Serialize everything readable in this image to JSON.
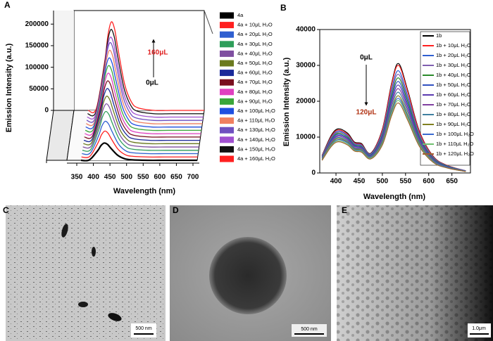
{
  "chart_data": [
    {
      "type": "waterfall",
      "panel": "A",
      "y_label": "Emission Intensity (a.u.)",
      "x_label": "Wavelength (nm)",
      "annotations": [
        "160μL",
        "0μL"
      ],
      "xlim": [
        350,
        700
      ],
      "xticks": [
        350,
        400,
        450,
        500,
        550,
        600,
        650,
        700
      ],
      "ylim": [
        0,
        220000
      ],
      "yticks": [
        0,
        50000,
        100000,
        150000,
        200000
      ],
      "x": [
        350,
        375,
        400,
        410,
        420,
        430,
        440,
        460,
        480,
        500,
        550,
        600,
        650,
        700
      ],
      "series": [
        {
          "name": "4a",
          "color": "#000000",
          "values": [
            0,
            800,
            22000,
            34000,
            40000,
            36800,
            28000,
            12000,
            4000,
            1200,
            0,
            0,
            0,
            0
          ]
        },
        {
          "name": "4a + 10μL H₂O",
          "color": "#ff2020",
          "values": [
            0,
            1200,
            33000,
            51000,
            60000,
            55200,
            42000,
            18000,
            6000,
            1800,
            0,
            0,
            0,
            0
          ]
        },
        {
          "name": "4a + 20μL H₂O",
          "color": "#2f5fd0",
          "values": [
            0,
            1500,
            41250,
            63750,
            75000,
            69000,
            52500,
            22500,
            7500,
            2250,
            0,
            0,
            0,
            0
          ]
        },
        {
          "name": "4a + 30μL H₂O",
          "color": "#2e9e5a",
          "values": [
            0,
            1800,
            49500,
            76500,
            90000,
            82800,
            63000,
            27000,
            9000,
            2700,
            0,
            0,
            0,
            0
          ]
        },
        {
          "name": "4a + 40μL H₂O",
          "color": "#7f4fa0",
          "values": [
            0,
            2000,
            55000,
            85000,
            100000,
            92000,
            70000,
            30000,
            10000,
            3000,
            0,
            0,
            0,
            0
          ]
        },
        {
          "name": "4a + 50μL H₂O",
          "color": "#6b7a1f",
          "values": [
            0,
            2200,
            60500,
            93500,
            110000,
            101200,
            77000,
            33000,
            11000,
            3300,
            0,
            0,
            0,
            0
          ]
        },
        {
          "name": "4a + 60μL H₂O",
          "color": "#1a2a9a",
          "values": [
            0,
            2400,
            66000,
            102000,
            120000,
            110400,
            84000,
            36000,
            12000,
            3600,
            0,
            0,
            0,
            0
          ]
        },
        {
          "name": "4a + 70μL H₂O",
          "color": "#7a0f1f",
          "values": [
            0,
            2600,
            71500,
            110500,
            130000,
            119600,
            91000,
            39000,
            13000,
            3900,
            0,
            0,
            0,
            0
          ]
        },
        {
          "name": "4a + 80μL H₂O",
          "color": "#e040c0",
          "values": [
            0,
            2800,
            77000,
            119000,
            140000,
            128800,
            98000,
            42000,
            14000,
            4200,
            0,
            0,
            0,
            0
          ]
        },
        {
          "name": "4a + 90μL H₂O",
          "color": "#3aa63a",
          "values": [
            0,
            3000,
            82500,
            127500,
            150000,
            138000,
            105000,
            45000,
            15000,
            4500,
            0,
            0,
            0,
            0
          ]
        },
        {
          "name": "4a + 100μL H₂O",
          "color": "#1f4fe0",
          "values": [
            0,
            3200,
            88000,
            136000,
            160000,
            147200,
            112000,
            48000,
            16000,
            4800,
            0,
            0,
            0,
            0
          ]
        },
        {
          "name": "4a + 110μL H₂O",
          "color": "#f08060",
          "values": [
            0,
            3400,
            93500,
            144500,
            170000,
            156400,
            119000,
            51000,
            17000,
            5100,
            0,
            0,
            0,
            0
          ]
        },
        {
          "name": "4a + 130μL H₂O",
          "color": "#7050c0",
          "values": [
            0,
            3600,
            99000,
            153000,
            180000,
            165600,
            126000,
            54000,
            18000,
            5400,
            0,
            0,
            0,
            0
          ]
        },
        {
          "name": "4a + 140μL H₂O",
          "color": "#a050d0",
          "values": [
            0,
            3700,
            101750,
            157250,
            185000,
            170200,
            129500,
            55500,
            18500,
            5550,
            0,
            0,
            0,
            0
          ]
        },
        {
          "name": "4a + 150μL H₂O",
          "color": "#111111",
          "values": [
            0,
            3900,
            107250,
            165750,
            195000,
            179400,
            136500,
            58500,
            19500,
            5850,
            0,
            0,
            0,
            0
          ]
        },
        {
          "name": "4a + 160μL H₂O",
          "color": "#ff2020",
          "values": [
            0,
            4100,
            112750,
            174250,
            205000,
            188600,
            143500,
            61500,
            20500,
            6150,
            0,
            0,
            0,
            0
          ]
        }
      ]
    },
    {
      "type": "line",
      "panel": "B",
      "y_label": "Emission Intensity (a.u.)",
      "x_label": "Wavelength (nm)",
      "annotations": [
        "0μL",
        "120μL"
      ],
      "xlim": [
        365,
        690
      ],
      "xticks": [
        400,
        450,
        500,
        550,
        600,
        650
      ],
      "ylim": [
        0,
        40000
      ],
      "yticks": [
        0,
        10000,
        20000,
        30000,
        40000
      ],
      "x": [
        370,
        390,
        405,
        425,
        440,
        455,
        475,
        500,
        520,
        535,
        555,
        580,
        610,
        640,
        680
      ],
      "series": [
        {
          "name": "1b",
          "color": "#000000",
          "values": [
            4900,
            10500,
            12300,
            11100,
            8600,
            8200,
            5500,
            12200,
            25000,
            30500,
            22900,
            11600,
            4600,
            2100,
            600
          ]
        },
        {
          "name": "1b + 10μL H₂O",
          "color": "#ff2020",
          "values": [
            4800,
            10200,
            12000,
            10800,
            8400,
            8000,
            5400,
            12000,
            24600,
            30000,
            22500,
            11400,
            4500,
            2100,
            600
          ]
        },
        {
          "name": "1b + 20μL H₂O",
          "color": "#2f5fd0",
          "values": [
            4700,
            9900,
            11700,
            10500,
            8200,
            7800,
            5300,
            11400,
            23400,
            28500,
            21400,
            10800,
            4300,
            2000,
            600
          ]
        },
        {
          "name": "1b + 30μL H₂O",
          "color": "#7f5fb0",
          "values": [
            4600,
            9700,
            11400,
            10300,
            8000,
            7600,
            5100,
            11000,
            22600,
            27500,
            20600,
            10500,
            4100,
            1900,
            600
          ]
        },
        {
          "name": "1b + 40μL H₂O",
          "color": "#2a8a2a",
          "values": [
            4400,
            9400,
            11100,
            10000,
            7800,
            7400,
            5000,
            10600,
            21700,
            26500,
            19900,
            10100,
            4000,
            1900,
            500
          ]
        },
        {
          "name": "1b + 50μL H₂O",
          "color": "#3050c0",
          "values": [
            4300,
            9200,
            10800,
            9700,
            7600,
            7200,
            4900,
            10200,
            20900,
            25500,
            19100,
            9700,
            3800,
            1800,
            500
          ]
        },
        {
          "name": "1b + 60μL H₂O",
          "color": "#5a3ab0",
          "values": [
            4200,
            8900,
            10500,
            9500,
            7400,
            7000,
            4700,
            9800,
            20100,
            24500,
            18400,
            9300,
            3700,
            1700,
            500
          ]
        },
        {
          "name": "1b + 70μL H₂O",
          "color": "#8040a0",
          "values": [
            4100,
            8700,
            10200,
            9200,
            7100,
            6800,
            4600,
            9400,
            19300,
            23500,
            17600,
            8900,
            3500,
            1600,
            500
          ]
        },
        {
          "name": "1b + 80μL H₂O",
          "color": "#4080a0",
          "values": [
            4000,
            8400,
            9900,
            8900,
            6900,
            6600,
            4500,
            9000,
            18500,
            22500,
            16900,
            8600,
            3400,
            1600,
            500
          ]
        },
        {
          "name": "1b + 90μL H₂O",
          "color": "#808020",
          "values": [
            3800,
            8200,
            9600,
            8600,
            6700,
            6400,
            4300,
            8600,
            17600,
            21500,
            16100,
            8200,
            3200,
            1500,
            400
          ]
        },
        {
          "name": "1b + 100μL H₂O",
          "color": "#3a6ad0",
          "values": [
            3700,
            7900,
            9300,
            8400,
            6500,
            6200,
            4200,
            8300,
            17100,
            20800,
            15600,
            7900,
            3100,
            1500,
            400
          ]
        },
        {
          "name": "1b + 110μL H₂O",
          "color": "#70c070",
          "values": [
            3600,
            7700,
            9000,
            8100,
            6300,
            6000,
            4100,
            8100,
            16600,
            20200,
            15200,
            7700,
            3000,
            1400,
            400
          ]
        },
        {
          "name": "1b + 120μL H₂O",
          "color": "#a06030",
          "values": [
            3500,
            7400,
            8700,
            7800,
            6100,
            5800,
            3900,
            7800,
            16000,
            19500,
            14600,
            7400,
            2900,
            1400,
            400
          ]
        }
      ]
    }
  ],
  "images": [
    {
      "panel": "C",
      "scale_bar": "500 nm"
    },
    {
      "panel": "D",
      "scale_bar": "500 nm"
    },
    {
      "panel": "E",
      "scale_bar": "1.0μm"
    }
  ]
}
